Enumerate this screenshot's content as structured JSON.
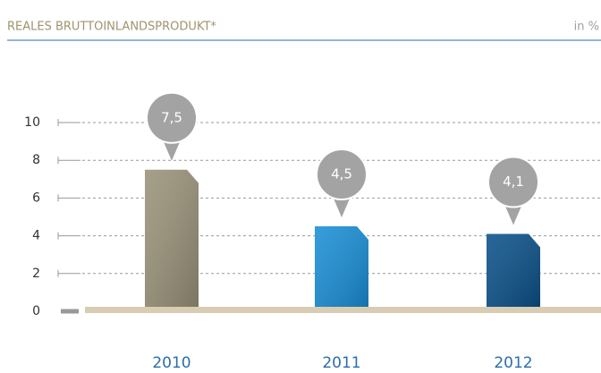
{
  "chart_data": {
    "type": "bar",
    "title": "REALES BRUTTOINLANDSPRODUKT*",
    "unit_label": "in %",
    "categories": [
      "2010",
      "2011",
      "2012"
    ],
    "values": [
      7.5,
      4.5,
      4.1
    ],
    "value_labels": [
      "7,5",
      "4,5",
      "4,1"
    ],
    "colors": [
      "#9a9279",
      "#1a8fd6",
      "#0b5189"
    ],
    "ylim": [
      0,
      10
    ],
    "yticks": [
      0,
      2,
      4,
      6,
      8,
      10
    ],
    "grid": true
  }
}
